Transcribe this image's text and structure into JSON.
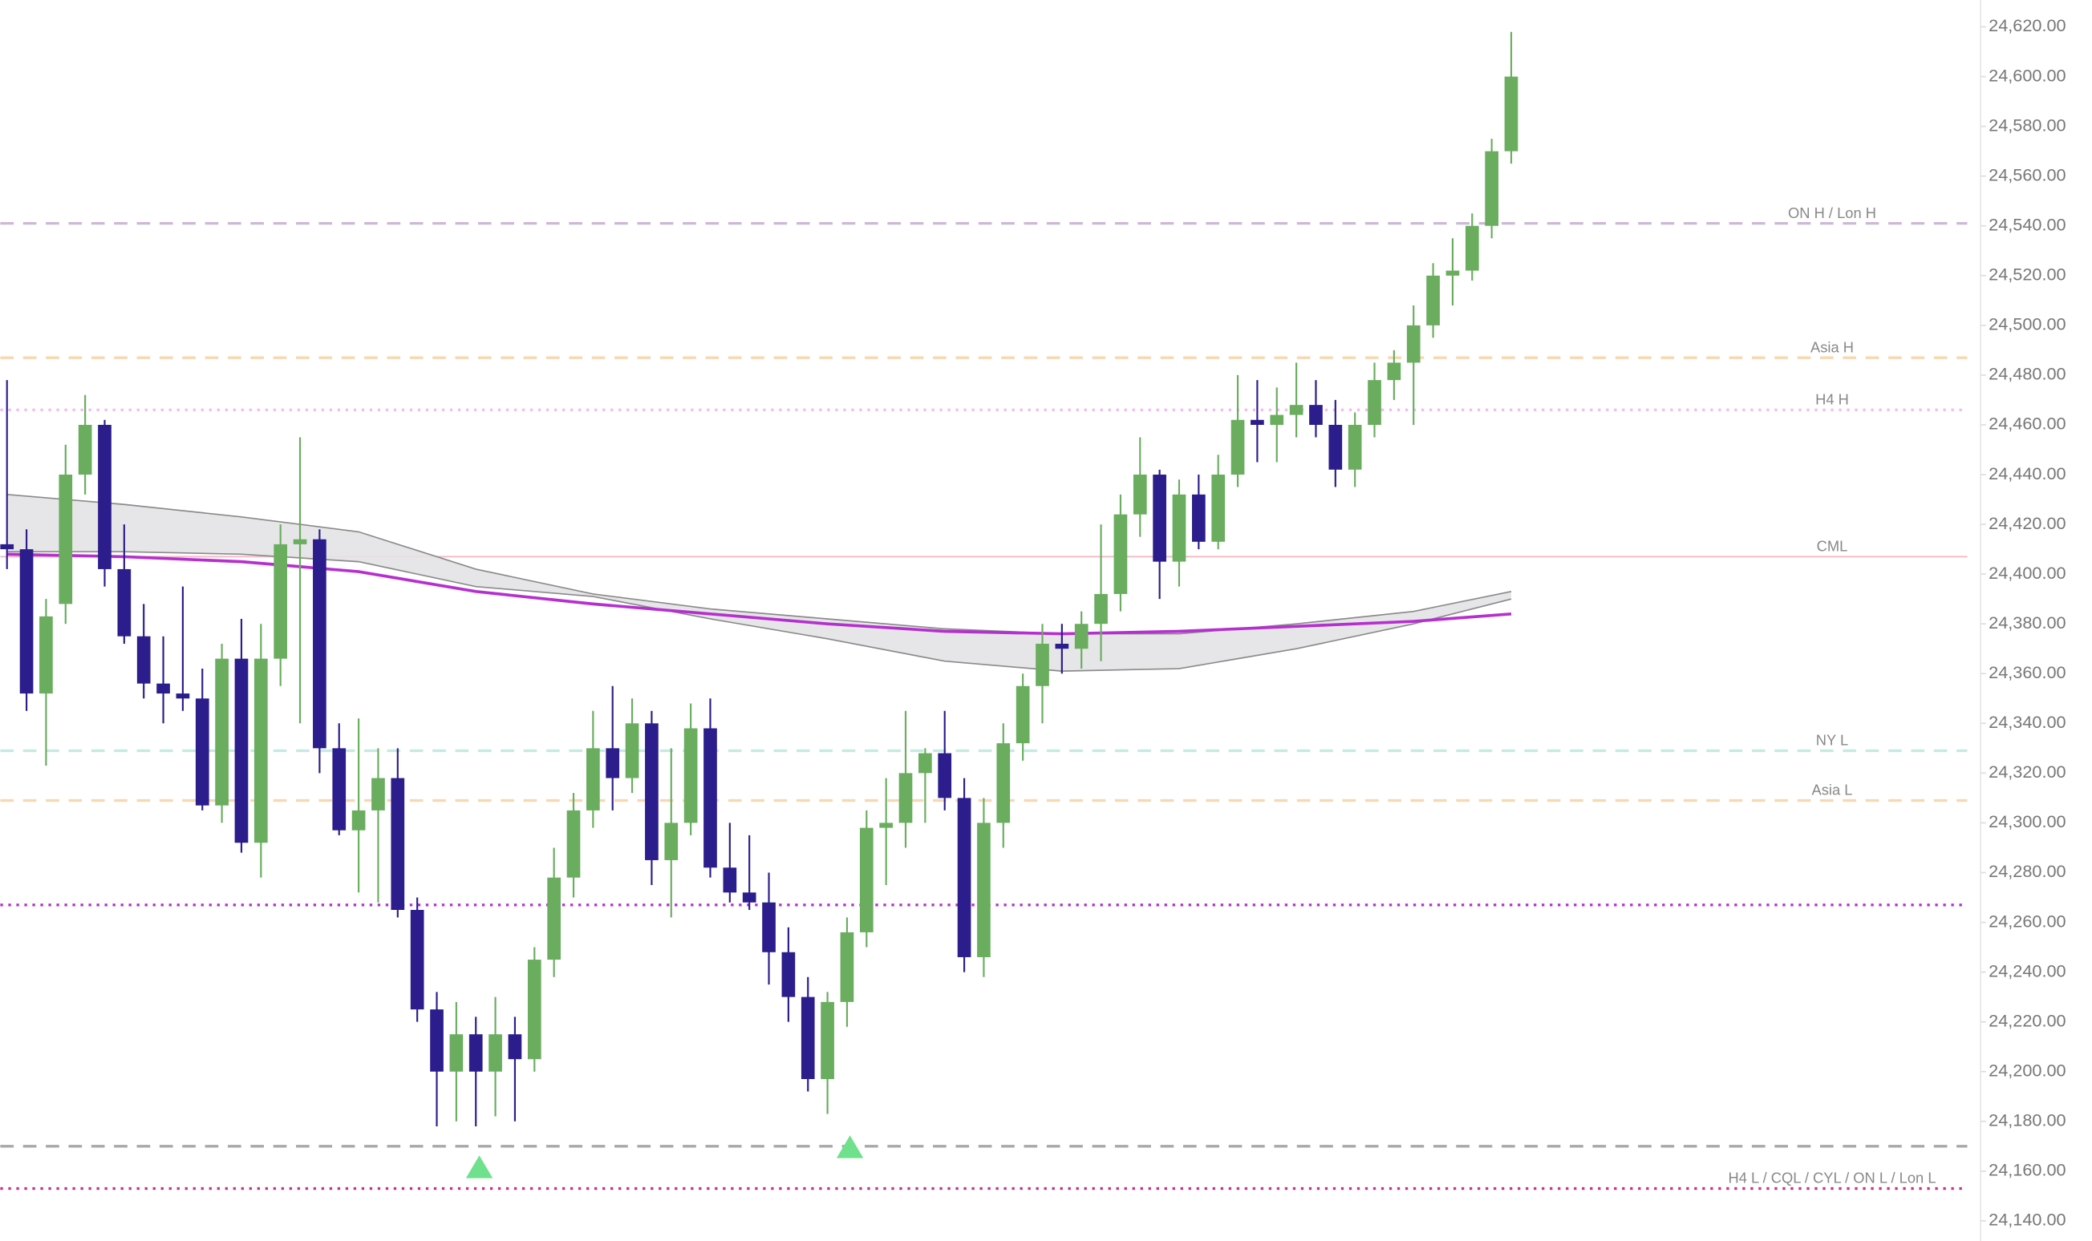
{
  "chart_data": {
    "type": "candlestick",
    "ylim": [
      24131.9,
      24630.8
    ],
    "yticks": [
      {
        "value": 24620,
        "label": "24,620.00"
      },
      {
        "value": 24600,
        "label": "24,600.00"
      },
      {
        "value": 24580,
        "label": "24,580.00"
      },
      {
        "value": 24560,
        "label": "24,560.00"
      },
      {
        "value": 24540,
        "label": "24,540.00"
      },
      {
        "value": 24520,
        "label": "24,520.00"
      },
      {
        "value": 24500,
        "label": "24,500.00"
      },
      {
        "value": 24480,
        "label": "24,480.00"
      },
      {
        "value": 24460,
        "label": "24,460.00"
      },
      {
        "value": 24440,
        "label": "24,440.00"
      },
      {
        "value": 24420,
        "label": "24,420.00"
      },
      {
        "value": 24400,
        "label": "24,400.00"
      },
      {
        "value": 24380,
        "label": "24,380.00"
      },
      {
        "value": 24360,
        "label": "24,360.00"
      },
      {
        "value": 24340,
        "label": "24,340.00"
      },
      {
        "value": 24320,
        "label": "24,320.00"
      },
      {
        "value": 24300,
        "label": "24,300.00"
      },
      {
        "value": 24280,
        "label": "24,280.00"
      },
      {
        "value": 24260,
        "label": "24,260.00"
      },
      {
        "value": 24240,
        "label": "24,240.00"
      },
      {
        "value": 24220,
        "label": "24,220.00"
      },
      {
        "value": 24200,
        "label": "24,200.00"
      },
      {
        "value": 24180,
        "label": "24,180.00"
      },
      {
        "value": 24160,
        "label": "24,160.00"
      },
      {
        "value": 24140,
        "label": "24,140.00"
      }
    ],
    "up_color": "#6aad5f",
    "down_color": "#2b1d8c",
    "open": [
      24412,
      24410,
      24352,
      24388,
      24440,
      24460,
      24402,
      24375,
      24356,
      24352,
      24350,
      24307,
      24366,
      24292,
      24366,
      24412,
      24414,
      24330,
      24297,
      24305,
      24318,
      24265,
      24225,
      24200,
      24215,
      24200,
      24215,
      24205,
      24245,
      24278,
      24305,
      24330,
      24318,
      24340,
      24285,
      24300,
      24338,
      24282,
      24272,
      24268,
      24248,
      24230,
      24197,
      24228,
      24256,
      24298,
      24300,
      24320,
      24328,
      24310,
      24246,
      24300,
      24332,
      24355,
      24372,
      24370,
      24380,
      24392,
      24424,
      24440,
      24405,
      24432,
      24413,
      24440,
      24462,
      24460,
      24464,
      24468,
      24460,
      24442,
      24460,
      24478,
      24485,
      24500,
      24520,
      24522,
      24540,
      24570
    ],
    "high": [
      24478,
      24418,
      24390,
      24452,
      24472,
      24462,
      24420,
      24388,
      24375,
      24395,
      24362,
      24372,
      24382,
      24380,
      24420,
      24455,
      24418,
      24340,
      24342,
      24330,
      24330,
      24270,
      24232,
      24228,
      24222,
      24230,
      24222,
      24250,
      24290,
      24312,
      24345,
      24355,
      24350,
      24345,
      24330,
      24348,
      24350,
      24300,
      24295,
      24280,
      24258,
      24238,
      24232,
      24262,
      24305,
      24318,
      24345,
      24330,
      24345,
      24318,
      24310,
      24340,
      24360,
      24380,
      24380,
      24385,
      24420,
      24432,
      24455,
      24442,
      24438,
      24440,
      24448,
      24480,
      24478,
      24475,
      24485,
      24478,
      24470,
      24465,
      24485,
      24490,
      24508,
      24525,
      24535,
      24545,
      24575,
      24618
    ],
    "low": [
      24402,
      24345,
      24323,
      24380,
      24432,
      24395,
      24372,
      24350,
      24340,
      24345,
      24305,
      24300,
      24288,
      24278,
      24355,
      24340,
      24320,
      24295,
      24272,
      24268,
      24262,
      24220,
      24178,
      24180,
      24178,
      24182,
      24180,
      24200,
      24238,
      24270,
      24298,
      24305,
      24312,
      24275,
      24262,
      24295,
      24278,
      24268,
      24265,
      24235,
      24220,
      24192,
      24183,
      24218,
      24250,
      24275,
      24290,
      24300,
      24305,
      24240,
      24238,
      24290,
      24325,
      24340,
      24360,
      24362,
      24365,
      24385,
      24415,
      24390,
      24395,
      24410,
      24410,
      24435,
      24445,
      24445,
      24455,
      24455,
      24435,
      24435,
      24455,
      24470,
      24460,
      24495,
      24508,
      24518,
      24535,
      24565
    ],
    "close": [
      24410,
      24352,
      24383,
      24440,
      24460,
      24402,
      24375,
      24356,
      24352,
      24350,
      24307,
      24366,
      24292,
      24366,
      24412,
      24414,
      24330,
      24297,
      24305,
      24318,
      24265,
      24225,
      24200,
      24215,
      24200,
      24215,
      24205,
      24245,
      24278,
      24305,
      24330,
      24318,
      24340,
      24285,
      24300,
      24338,
      24282,
      24272,
      24268,
      24248,
      24230,
      24197,
      24228,
      24256,
      24298,
      24300,
      24320,
      24328,
      24310,
      24246,
      24300,
      24332,
      24355,
      24372,
      24370,
      24380,
      24392,
      24424,
      24440,
      24405,
      24432,
      24413,
      24440,
      24462,
      24460,
      24464,
      24468,
      24460,
      24442,
      24460,
      24478,
      24485,
      24500,
      24520,
      24522,
      24540,
      24570,
      24600
    ],
    "ma": {
      "color": "#b62fd0",
      "x": [
        0,
        6,
        12,
        18,
        24,
        30,
        36,
        42,
        48,
        54,
        60,
        66,
        72,
        77
      ],
      "values": [
        24408,
        24407,
        24405,
        24401,
        24393,
        24388,
        24384,
        24380,
        24377,
        24376,
        24377,
        24379,
        24381,
        24384
      ]
    },
    "band": {
      "color": "#8a8a8a",
      "fill": "#e3e3e6",
      "x": [
        0,
        6,
        12,
        18,
        24,
        30,
        36,
        42,
        48,
        54,
        60,
        66,
        72,
        77
      ],
      "upper": [
        24432,
        24428,
        24423,
        24417,
        24402,
        24392,
        24386,
        24382,
        24378,
        24376,
        24376,
        24380,
        24385,
        24393
      ],
      "lower": [
        24409,
        24409,
        24408,
        24405,
        24395,
        24391,
        24382,
        24374,
        24365,
        24361,
        24362,
        24370,
        24380,
        24390
      ]
    },
    "levels": [
      {
        "label": "ON H / Lon H",
        "value": 24541,
        "color": "#cdb8d8",
        "style": "dashed"
      },
      {
        "label": "Asia H",
        "value": 24487,
        "color": "#f8d8b0",
        "style": "dashed"
      },
      {
        "label": "H4 H",
        "value": 24466,
        "color": "#f0bdf0",
        "style": "dotted"
      },
      {
        "label": "CML",
        "value": 24407,
        "color": "#f2bcc4",
        "style": "solid"
      },
      {
        "label": "NY L",
        "value": 24329,
        "color": "#c4ebe3",
        "style": "dashed"
      },
      {
        "label": "Asia L",
        "value": 24309,
        "color": "#f8d8b0",
        "style": "dashed"
      },
      {
        "value": 24267,
        "color": "#b733d4",
        "style": "dotted"
      },
      {
        "value": 24170,
        "color": "#a8a8a8",
        "style": "dashed"
      },
      {
        "label": "H4 L / CQL / CYL / ON L / Lon L",
        "value": 24153,
        "color": "#c0348c",
        "style": "dotted"
      }
    ]
  }
}
